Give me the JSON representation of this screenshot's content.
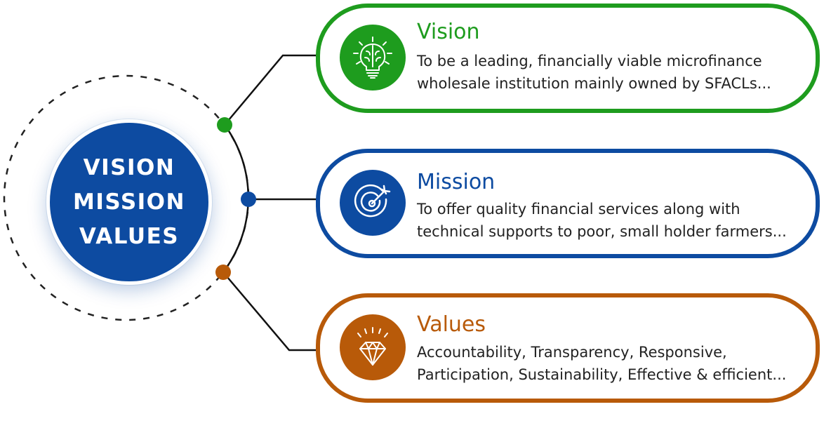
{
  "hub": {
    "lines": [
      "VISION",
      "MISSION",
      "VALUES"
    ]
  },
  "colors": {
    "vision": "#1e9c1e",
    "mission": "#0d4ba1",
    "values": "#b85a09",
    "hub": "#0d4ba1"
  },
  "cards": {
    "vision": {
      "title": "Vision",
      "icon": "brain-lightbulb-icon",
      "lines": [
        "To be a leading, financially viable microfinance",
        "wholesale institution mainly owned by SFACLs..."
      ]
    },
    "mission": {
      "title": "Mission",
      "icon": "target-arrow-icon",
      "lines": [
        "To offer quality financial services along with",
        "technical supports to poor, small holder farmers..."
      ]
    },
    "values": {
      "title": "Values",
      "icon": "diamond-icon",
      "lines": [
        "Accountability, Transparency, Responsive,",
        "Participation, Sustainability, Effective & efficient..."
      ]
    }
  }
}
